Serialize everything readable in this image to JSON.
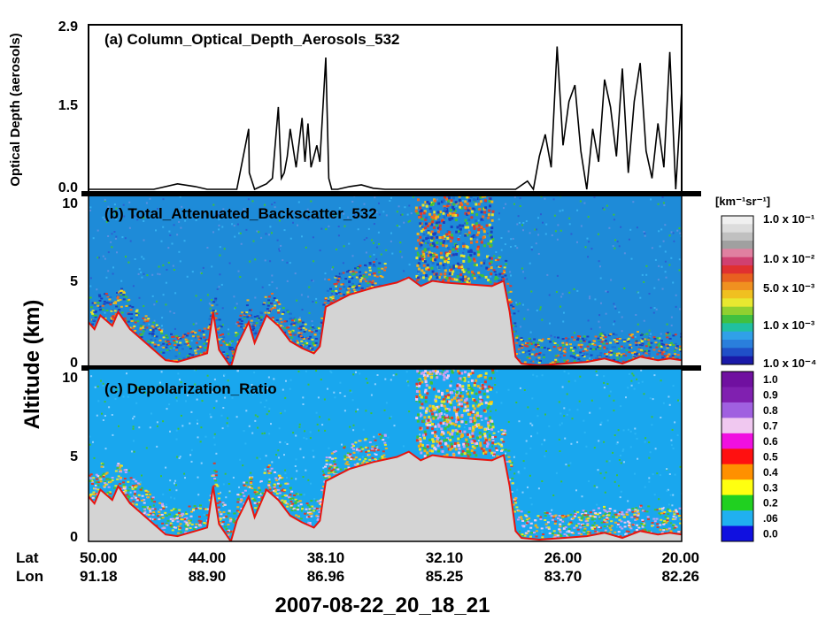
{
  "chart_data": [
    {
      "type": "line",
      "title": "(a)  Column_Optical_Depth_Aerosols_532",
      "ylabel": "Optical Depth (aerosols)",
      "ylim": [
        0,
        2.9
      ],
      "yticks": [
        "2.9",
        "1.5",
        "0.0"
      ],
      "x": [
        0,
        0.02,
        0.05,
        0.08,
        0.11,
        0.15,
        0.18,
        0.2,
        0.25,
        0.27,
        0.271,
        0.28,
        0.29,
        0.3,
        0.31,
        0.32,
        0.325,
        0.33,
        0.335,
        0.34,
        0.35,
        0.36,
        0.365,
        0.37,
        0.375,
        0.38,
        0.385,
        0.39,
        0.4,
        0.405,
        0.41,
        0.42,
        0.44,
        0.46,
        0.48,
        0.5,
        0.52,
        0.55,
        0.58,
        0.6,
        0.65,
        0.7,
        0.72,
        0.74,
        0.75,
        0.76,
        0.77,
        0.78,
        0.79,
        0.8,
        0.81,
        0.82,
        0.83,
        0.84,
        0.85,
        0.86,
        0.87,
        0.88,
        0.89,
        0.9,
        0.91,
        0.92,
        0.93,
        0.94,
        0.95,
        0.96,
        0.97,
        0.98,
        0.99,
        1.0
      ],
      "values": [
        0.0,
        0.0,
        0.0,
        0.0,
        0.0,
        0.1,
        0.05,
        0.0,
        0.0,
        1.1,
        0.3,
        0.0,
        0.05,
        0.1,
        0.2,
        1.5,
        0.2,
        0.3,
        0.6,
        1.1,
        0.4,
        1.3,
        0.5,
        1.2,
        0.4,
        0.6,
        0.8,
        0.5,
        2.4,
        0.2,
        0.0,
        0.0,
        0.05,
        0.08,
        0.02,
        0.0,
        0.0,
        0.0,
        0.0,
        0.0,
        0.0,
        0.0,
        0.0,
        0.15,
        0.0,
        0.6,
        1.0,
        0.4,
        2.6,
        0.8,
        1.6,
        1.9,
        0.7,
        0.0,
        1.1,
        0.5,
        2.0,
        1.5,
        0.6,
        2.2,
        0.3,
        1.6,
        2.3,
        0.7,
        0.2,
        1.2,
        0.4,
        2.5,
        0.0,
        1.8
      ]
    },
    {
      "type": "heatmap",
      "title": "(b)  Total_Attenuated_Backscatter_532",
      "ylabel": "Altitude (km)",
      "ylim": [
        0,
        10
      ],
      "yticks": [
        "10",
        "5",
        "0"
      ],
      "colorbar_unit": "[km⁻¹sr⁻¹]",
      "colorbar_labels": [
        "1.0 x 10⁻¹",
        "1.0 x 10⁻²",
        "5.0 x 10⁻³",
        "1.0 x 10⁻³",
        "1.0 x 10⁻⁴"
      ]
    },
    {
      "type": "heatmap",
      "title": "(c)  Depolarization_Ratio",
      "ylabel": "Altitude (km)",
      "ylim": [
        0,
        10
      ],
      "yticks": [
        "10",
        "5",
        "0"
      ],
      "colorbar_labels": [
        "1.0",
        "0.9",
        "0.8",
        "0.7",
        "0.6",
        "0.5",
        "0.4",
        "0.3",
        "0.2",
        ".06",
        "0.0"
      ]
    }
  ],
  "surface_profile": [
    [
      0,
      2.6
    ],
    [
      0.01,
      2.2
    ],
    [
      0.02,
      3.0
    ],
    [
      0.04,
      2.4
    ],
    [
      0.05,
      3.2
    ],
    [
      0.07,
      2.2
    ],
    [
      0.09,
      1.6
    ],
    [
      0.11,
      1.0
    ],
    [
      0.13,
      0.4
    ],
    [
      0.15,
      0.3
    ],
    [
      0.18,
      0.6
    ],
    [
      0.2,
      0.8
    ],
    [
      0.21,
      3.2
    ],
    [
      0.22,
      1.0
    ],
    [
      0.24,
      0.0
    ],
    [
      0.25,
      1.2
    ],
    [
      0.27,
      2.6
    ],
    [
      0.28,
      1.4
    ],
    [
      0.29,
      2.2
    ],
    [
      0.3,
      3.0
    ],
    [
      0.32,
      2.4
    ],
    [
      0.34,
      1.5
    ],
    [
      0.36,
      1.1
    ],
    [
      0.38,
      0.8
    ],
    [
      0.39,
      1.2
    ],
    [
      0.4,
      3.5
    ],
    [
      0.44,
      4.2
    ],
    [
      0.48,
      4.6
    ],
    [
      0.52,
      4.9
    ],
    [
      0.54,
      5.2
    ],
    [
      0.56,
      4.7
    ],
    [
      0.58,
      5.0
    ],
    [
      0.6,
      4.9
    ],
    [
      0.64,
      4.8
    ],
    [
      0.68,
      4.7
    ],
    [
      0.7,
      5.0
    ],
    [
      0.71,
      3.2
    ],
    [
      0.72,
      0.6
    ],
    [
      0.73,
      0.2
    ],
    [
      0.76,
      0.1
    ],
    [
      0.8,
      0.2
    ],
    [
      0.84,
      0.3
    ],
    [
      0.87,
      0.5
    ],
    [
      0.9,
      0.2
    ],
    [
      0.93,
      0.6
    ],
    [
      0.96,
      0.4
    ],
    [
      0.98,
      0.5
    ],
    [
      1.0,
      0.4
    ]
  ],
  "colors": {
    "surface_fill": "#d4d4d4",
    "surface_line": "#e8150f",
    "clear_air_b": "#1e8bd8",
    "clear_air_c": "#19a7ee"
  },
  "x_axis": {
    "lat_label": "Lat",
    "lon_label": "Lon",
    "lat": [
      "50.00",
      "44.00",
      "38.10",
      "32.10",
      "26.00",
      "20.00"
    ],
    "lon": [
      "91.18",
      "88.90",
      "86.96",
      "85.25",
      "83.70",
      "82.26"
    ]
  },
  "footer_title": "2007-08-22_20_18_21"
}
